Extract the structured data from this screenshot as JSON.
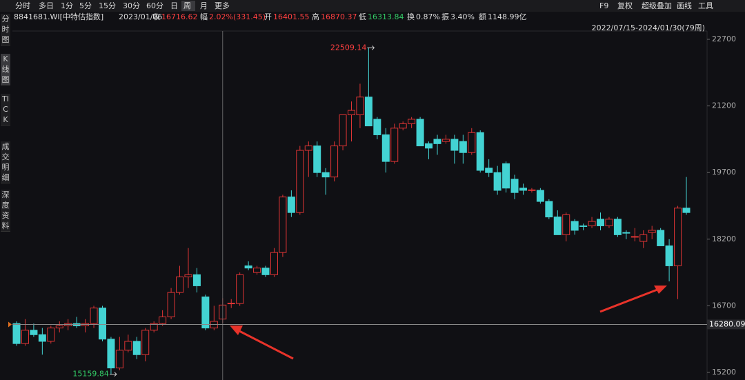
{
  "toolbar": {
    "tabs": [
      "分时",
      "多日",
      "1分",
      "5分",
      "15分",
      "30分",
      "60分",
      "日",
      "周",
      "月",
      "更多"
    ],
    "right": [
      "F9",
      "复权",
      "超级叠加",
      "画线",
      "工具"
    ]
  },
  "info": {
    "code": "8841681.WI[中特估指数]",
    "date": "2023/01/06",
    "fields": [
      {
        "label": "收",
        "value": "16716.62"
      },
      {
        "label": "幅",
        "value": "2.02%(331.45)"
      },
      {
        "label": "开",
        "value": "16401.55"
      },
      {
        "label": "高",
        "value": "16870.37"
      },
      {
        "label": "低",
        "value": "16313.84"
      },
      {
        "label": "换",
        "value": "0.87%"
      },
      {
        "label": "振",
        "value": "3.40%"
      },
      {
        "label": "额",
        "value": "1148.99亿"
      }
    ]
  },
  "sidebar": [
    "分时图",
    "K线图",
    "TICK",
    "成交明细",
    "深度资料"
  ],
  "chart_data": {
    "type": "candlestick",
    "range_label": "2022/07/15-2024/01/30(79周)",
    "ylim": [
      15200,
      23000
    ],
    "yticks": [
      15200,
      16700,
      18200,
      19700,
      21200,
      22700
    ],
    "up_color": "#e03535",
    "down_color": "#43d3d3",
    "open": [
      16300,
      15850,
      16150,
      16050,
      15900,
      16200,
      16250,
      16300,
      16250,
      16300,
      16650,
      15950,
      15300,
      15700,
      15900,
      15600,
      16150,
      16300,
      16450,
      17000,
      17350,
      17400,
      16900,
      16200,
      16401.55,
      16750,
      16750,
      17600,
      17450,
      17550,
      17400,
      17900,
      19150,
      18800,
      20200,
      20300,
      19700,
      19600,
      20300,
      21000,
      21000,
      21400,
      20900,
      20550,
      19950,
      20700,
      20800,
      20900,
      20350,
      20450,
      20400,
      20450,
      20400,
      20150,
      20600,
      19800,
      19700,
      19900,
      19550,
      19350,
      19300,
      19300,
      19050,
      18700,
      18300,
      18600,
      18500,
      18500,
      18650,
      18500,
      18650,
      18350,
      18250,
      18150,
      18350,
      18400,
      18050,
      17600,
      18900
    ],
    "high": [
      16350,
      16400,
      16300,
      16200,
      16250,
      16350,
      16400,
      16450,
      16400,
      16700,
      16700,
      16000,
      16000,
      16050,
      16000,
      16200,
      16350,
      16600,
      17100,
      17600,
      18000,
      17550,
      16950,
      16700,
      16870.37,
      16850,
      17450,
      17700,
      17600,
      17600,
      18000,
      19200,
      19300,
      20300,
      20400,
      20400,
      19800,
      20400,
      21000,
      21300,
      21700,
      22509.14,
      20950,
      20700,
      20800,
      20850,
      20950,
      20950,
      20400,
      20550,
      20550,
      20550,
      20550,
      20700,
      20650,
      20000,
      19850,
      19950,
      19650,
      19450,
      19350,
      19350,
      19100,
      18850,
      18800,
      18650,
      18550,
      18700,
      18800,
      18700,
      18700,
      18400,
      18450,
      18400,
      18500,
      18450,
      18200,
      18950,
      19600
    ],
    "low": [
      15800,
      15800,
      16000,
      15600,
      15850,
      16100,
      16150,
      16200,
      16100,
      16200,
      15900,
      15159.84,
      15250,
      15650,
      15500,
      15450,
      16100,
      16250,
      16400,
      16950,
      17100,
      17000,
      16150,
      16150,
      16313.84,
      16650,
      16700,
      17500,
      17400,
      17350,
      17350,
      17800,
      18700,
      18750,
      19600,
      19600,
      19200,
      19500,
      20200,
      20400,
      20700,
      20750,
      20450,
      19700,
      19900,
      20650,
      20700,
      20300,
      20000,
      20100,
      20350,
      19900,
      19900,
      20100,
      19700,
      19600,
      19200,
      19250,
      19100,
      19200,
      19250,
      19000,
      18650,
      18300,
      18150,
      18300,
      18400,
      18450,
      18400,
      18450,
      18250,
      18200,
      18150,
      18000,
      18200,
      18050,
      17250,
      16850,
      18750
    ],
    "close": [
      15850,
      16150,
      16050,
      15900,
      16200,
      16250,
      16300,
      16250,
      16300,
      16650,
      15950,
      15300,
      15700,
      15900,
      15600,
      16150,
      16300,
      16450,
      17000,
      17350,
      17400,
      17150,
      16200,
      16350,
      16716.62,
      16760,
      17400,
      17550,
      17550,
      17400,
      17900,
      19150,
      18800,
      20200,
      20300,
      19700,
      19600,
      20300,
      21000,
      21100,
      21400,
      20750,
      20550,
      19950,
      20700,
      20800,
      20900,
      20300,
      20250,
      20350,
      20450,
      20200,
      20150,
      20600,
      19750,
      19700,
      19300,
      19350,
      19250,
      19300,
      19310,
      19050,
      18700,
      18300,
      18750,
      18400,
      18490,
      18600,
      18500,
      18650,
      18300,
      18340,
      18260,
      18300,
      18400,
      18050,
      17600,
      18900,
      18800
    ],
    "high_label": 22509.14,
    "low_label": 15159.84,
    "price_tag": 16280.09
  }
}
